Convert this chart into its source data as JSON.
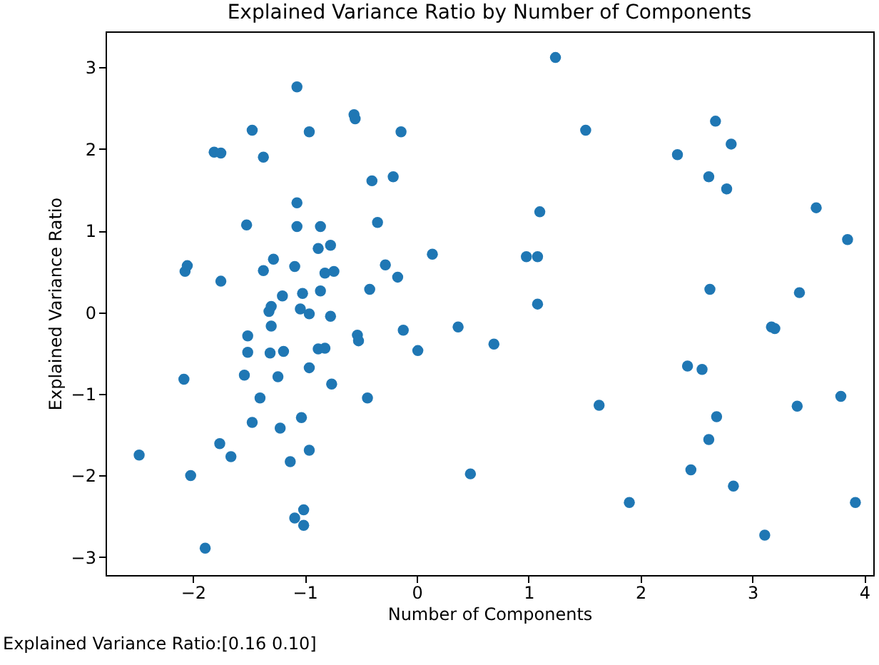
{
  "chart_data": {
    "type": "scatter",
    "title": "Explained Variance Ratio by Number of Components",
    "xlabel": "Number of Components",
    "ylabel": "Explained Variance Ratio",
    "annotations": [
      "Explained Variance Ratio:[0.16 0.10]"
    ],
    "xlim": [
      -2.78,
      4.08
    ],
    "ylim": [
      -3.22,
      3.44
    ],
    "xticks": [
      -2,
      -1,
      0,
      1,
      2,
      3,
      4
    ],
    "yticks": [
      -3,
      -2,
      -1,
      0,
      1,
      2,
      3
    ],
    "grid": false,
    "marker": "circle",
    "series": [
      {
        "color": "#1f77b4",
        "x": [
          -2.48,
          -2.08,
          -2.07,
          -2.05,
          -2.02,
          -1.89,
          -1.81,
          -1.75,
          -1.75,
          -1.76,
          -1.66,
          -1.47,
          -1.37,
          -1.52,
          -1.37,
          -1.28,
          -1.07,
          -0.96,
          -0.56,
          -0.55,
          -0.14,
          -0.4,
          -0.21,
          -1.07,
          -1.07,
          -0.86,
          -0.35,
          -0.88,
          -0.77,
          0.14,
          -1.09,
          -0.82,
          -0.74,
          -0.28,
          -0.17,
          -0.42,
          -1.2,
          -1.02,
          -0.86,
          -1.32,
          -1.3,
          -1.04,
          -0.96,
          -0.77,
          -1.3,
          -1.51,
          -1.51,
          -1.31,
          -1.19,
          -0.88,
          -0.82,
          -0.53,
          -0.52,
          -0.12,
          0.01,
          0.37,
          -1.54,
          -1.24,
          -0.96,
          -0.76,
          -1.4,
          -0.44,
          -1.47,
          -1.03,
          -1.22,
          -0.96,
          -1.13,
          0.48,
          -1.01,
          -1.09,
          -1.01,
          1.24,
          1.51,
          2.67,
          2.81,
          2.33,
          2.61,
          2.77,
          3.57,
          3.85,
          1.1,
          0.98,
          1.08,
          1.08,
          2.62,
          3.42,
          3.17,
          3.2,
          0.69,
          2.42,
          2.55,
          1.63,
          3.4,
          3.79,
          2.68,
          2.61,
          2.45,
          2.83,
          1.9,
          3.92,
          3.11
        ],
        "values": [
          -1.75,
          -0.82,
          0.5,
          0.57,
          -2.0,
          -2.89,
          1.96,
          1.95,
          0.38,
          -1.61,
          -1.77,
          2.23,
          1.9,
          1.07,
          0.51,
          0.65,
          2.76,
          2.21,
          2.42,
          2.37,
          2.21,
          1.61,
          1.66,
          1.34,
          1.05,
          1.05,
          1.1,
          0.78,
          0.82,
          0.71,
          0.56,
          0.48,
          0.5,
          0.58,
          0.43,
          0.28,
          0.2,
          0.23,
          0.26,
          0.01,
          0.07,
          0.04,
          -0.02,
          -0.05,
          -0.17,
          -0.29,
          -0.49,
          -0.5,
          -0.48,
          -0.45,
          -0.44,
          -0.28,
          -0.35,
          -0.22,
          -0.47,
          -0.18,
          -0.77,
          -0.79,
          -0.68,
          -0.88,
          -1.05,
          -1.05,
          -1.35,
          -1.29,
          -1.42,
          -1.69,
          -1.83,
          -1.98,
          -2.42,
          -2.52,
          -2.61,
          3.12,
          2.23,
          2.34,
          2.06,
          1.93,
          1.66,
          1.51,
          1.28,
          0.89,
          1.23,
          0.68,
          0.68,
          0.1,
          0.28,
          0.24,
          -0.18,
          -0.2,
          -0.39,
          -0.66,
          -0.7,
          -1.14,
          -1.15,
          -1.03,
          -1.28,
          -1.56,
          -1.93,
          -2.13,
          -2.33,
          -2.33,
          -2.73
        ]
      }
    ]
  }
}
